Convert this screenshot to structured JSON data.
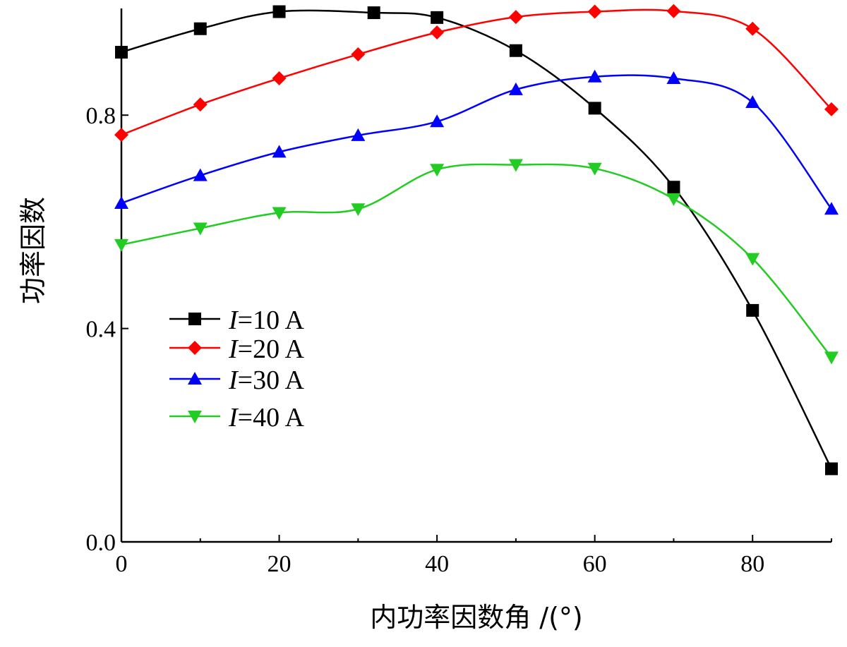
{
  "chart_data": {
    "type": "line",
    "title": "",
    "xlabel": "内功率因数角 /(°)",
    "ylabel": "功率因数",
    "xlim": [
      0,
      90
    ],
    "ylim": [
      0,
      1.0
    ],
    "xticks": [
      "0",
      "20",
      "40",
      "60",
      "80"
    ],
    "xtick_values": [
      0,
      20,
      40,
      60,
      80
    ],
    "yticks": [
      "0.0",
      "0.4",
      "0.8"
    ],
    "ytick_values": [
      0,
      0.4,
      0.8
    ],
    "grid": false,
    "legend_position": "center-left",
    "series": [
      {
        "name": "I=10 A",
        "var": "I",
        "rest": "=10 A",
        "color": "#000000",
        "marker": "square",
        "x": [
          0,
          10,
          20,
          32,
          40,
          50,
          60,
          70,
          80,
          90
        ],
        "y": [
          0.918,
          0.962,
          0.994,
          0.992,
          0.983,
          0.921,
          0.813,
          0.665,
          0.434,
          0.137
        ]
      },
      {
        "name": "I=20 A",
        "var": "I",
        "rest": "=20 A",
        "color": "#ff0000",
        "marker": "diamond",
        "x": [
          0,
          10,
          20,
          30,
          40,
          50,
          60,
          70,
          80,
          90
        ],
        "y": [
          0.763,
          0.82,
          0.869,
          0.914,
          0.955,
          0.984,
          0.994,
          0.995,
          0.962,
          0.811
        ]
      },
      {
        "name": "I=30 A",
        "var": "I",
        "rest": "=30 A",
        "color": "#0000ff",
        "marker": "triangle-up",
        "x": [
          0,
          10,
          20,
          30,
          40,
          50,
          60,
          70,
          80,
          90
        ],
        "y": [
          0.635,
          0.687,
          0.731,
          0.762,
          0.788,
          0.848,
          0.872,
          0.869,
          0.824,
          0.624
        ]
      },
      {
        "name": "I=40 A",
        "var": "I",
        "rest": "=40 A",
        "color": "#22cc22",
        "marker": "triangle-down",
        "x": [
          0,
          10,
          20,
          30,
          40,
          50,
          60,
          70,
          80,
          90
        ],
        "y": [
          0.557,
          0.588,
          0.617,
          0.624,
          0.698,
          0.707,
          0.7,
          0.643,
          0.531,
          0.346
        ]
      }
    ]
  }
}
